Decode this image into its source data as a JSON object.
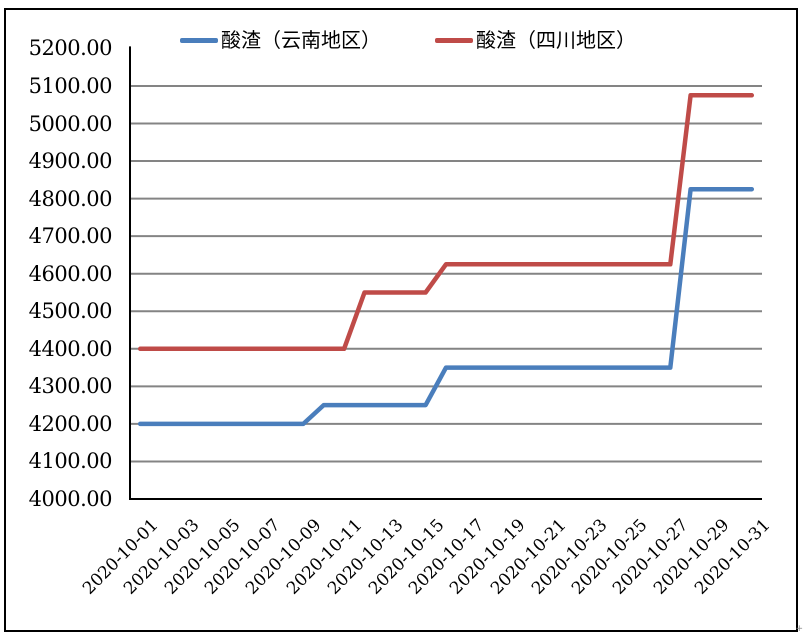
{
  "chart_data": {
    "type": "line",
    "title": "",
    "legend_position": "top",
    "grid": true,
    "grid_color": "#848484",
    "axis_color": "#000000",
    "ylim": [
      4000,
      5200
    ],
    "y_tick_step": 100,
    "y_ticks": [
      "5200.00",
      "5100.00",
      "5000.00",
      "4900.00",
      "4800.00",
      "4700.00",
      "4600.00",
      "4500.00",
      "4400.00",
      "4300.00",
      "4200.00",
      "4100.00",
      "4000.00"
    ],
    "x": [
      "2020-10-01",
      "2020-10-02",
      "2020-10-03",
      "2020-10-04",
      "2020-10-05",
      "2020-10-06",
      "2020-10-07",
      "2020-10-08",
      "2020-10-09",
      "2020-10-10",
      "2020-10-11",
      "2020-10-12",
      "2020-10-13",
      "2020-10-14",
      "2020-10-15",
      "2020-10-16",
      "2020-10-17",
      "2020-10-18",
      "2020-10-19",
      "2020-10-20",
      "2020-10-21",
      "2020-10-22",
      "2020-10-23",
      "2020-10-24",
      "2020-10-25",
      "2020-10-26",
      "2020-10-27",
      "2020-10-28",
      "2020-10-29",
      "2020-10-30",
      "2020-10-31"
    ],
    "x_tick_labels": [
      "2020-10-01",
      "2020-10-03",
      "2020-10-05",
      "2020-10-07",
      "2020-10-09",
      "2020-10-11",
      "2020-10-13",
      "2020-10-15",
      "2020-10-17",
      "2020-10-19",
      "2020-10-21",
      "2020-10-23",
      "2020-10-25",
      "2020-10-27",
      "2020-10-29",
      "2020-10-31"
    ],
    "series": [
      {
        "name": "酸渣（云南地区）",
        "color": "#4A7EBC",
        "values": [
          4200,
          4200,
          4200,
          4200,
          4200,
          4200,
          4200,
          4200,
          4200,
          4250,
          4250,
          4250,
          4250,
          4250,
          4250,
          4350,
          4350,
          4350,
          4350,
          4350,
          4350,
          4350,
          4350,
          4350,
          4350,
          4350,
          4350,
          4825,
          4825,
          4825,
          4825
        ]
      },
      {
        "name": "酸渣（四川地区）",
        "color": "#BF4B48",
        "values": [
          4400,
          4400,
          4400,
          4400,
          4400,
          4400,
          4400,
          4400,
          4400,
          4400,
          4400,
          4550,
          4550,
          4550,
          4550,
          4625,
          4625,
          4625,
          4625,
          4625,
          4625,
          4625,
          4625,
          4625,
          4625,
          4625,
          4625,
          5075,
          5075,
          5075,
          5075
        ]
      }
    ]
  },
  "corner_mark": "+"
}
